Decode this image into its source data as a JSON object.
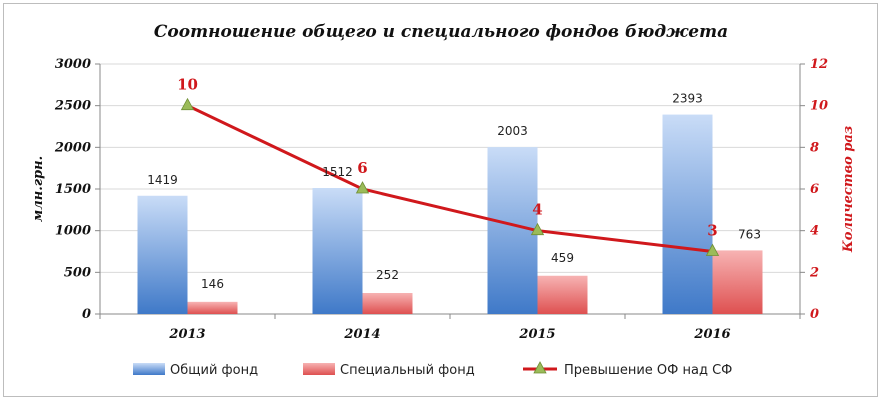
{
  "chart_data": {
    "type": "bar",
    "title": "Соотношение общего и специального фондов бюджета",
    "categories": [
      "2013",
      "2014",
      "2015",
      "2016"
    ],
    "series": [
      {
        "name": "Общий фонд",
        "kind": "bar",
        "axis": "left",
        "values": [
          1419,
          1512,
          2003,
          2393
        ],
        "color": "#5b8fd6"
      },
      {
        "name": "Специальный фонд",
        "kind": "bar",
        "axis": "left",
        "values": [
          146,
          252,
          459,
          763
        ],
        "color": "#e86a6a"
      },
      {
        "name": "Превышение ОФ над СФ",
        "kind": "line",
        "axis": "right",
        "values": [
          10,
          6,
          4,
          3
        ],
        "color": "#d0181c",
        "marker_color": "#9bbb59"
      }
    ],
    "ylabel": "млн.грн.",
    "y2label": "Количество раз",
    "ylim": [
      0,
      3000
    ],
    "y2lim": [
      0,
      12
    ],
    "yticks": [
      "0",
      "500",
      "1000",
      "1500",
      "2000",
      "2500",
      "3000"
    ],
    "y2ticks": [
      "0",
      "2",
      "4",
      "6",
      "8",
      "10",
      "12"
    ],
    "legend_position": "bottom"
  }
}
